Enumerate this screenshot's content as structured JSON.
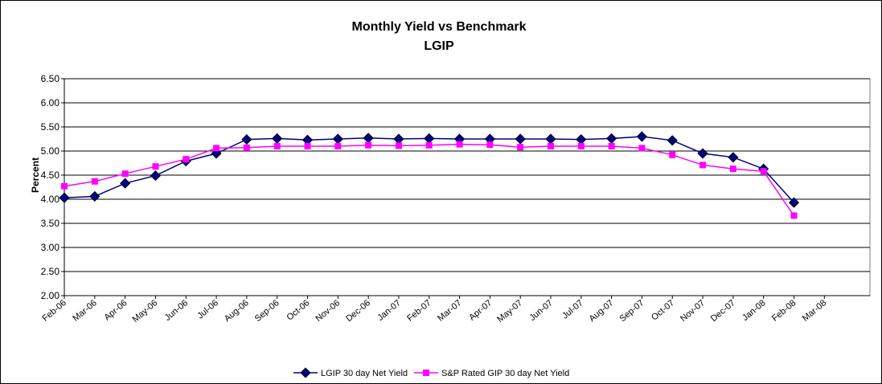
{
  "chart_data": {
    "type": "line",
    "title": "Monthly Yield vs Benchmark",
    "subtitle": "LGIP",
    "y_label": "Percent",
    "categories": [
      "Feb-06",
      "Mar-06",
      "Apr-06",
      "May-06",
      "Jun-06",
      "Jul-06",
      "Aug-06",
      "Sep-06",
      "Oct-06",
      "Nov-06",
      "Dec-06",
      "Jan-07",
      "Feb-07",
      "Mar-07",
      "Apr-07",
      "May-07",
      "Jun-07",
      "Jul-07",
      "Aug-07",
      "Sep-07",
      "Oct-07",
      "Nov-07",
      "Dec-07",
      "Jan-08",
      "Feb-08",
      "Mar-08"
    ],
    "series": [
      {
        "name": "LGIP 30 day Net Yield",
        "color": "#000080",
        "marker": "diamond",
        "values": [
          4.03,
          4.06,
          4.33,
          4.49,
          4.79,
          4.95,
          5.24,
          5.26,
          5.23,
          5.25,
          5.27,
          5.25,
          5.26,
          5.25,
          5.25,
          5.25,
          5.25,
          5.24,
          5.26,
          5.3,
          5.22,
          4.95,
          4.87,
          4.63,
          3.93,
          null
        ]
      },
      {
        "name": "S&P Rated GIP 30 day Net Yield",
        "color": "#ff00ff",
        "marker": "square",
        "values": [
          4.27,
          4.37,
          4.53,
          4.68,
          4.83,
          5.06,
          5.07,
          5.1,
          5.1,
          5.1,
          5.12,
          5.11,
          5.12,
          5.14,
          5.13,
          5.08,
          5.1,
          5.1,
          5.1,
          5.06,
          4.92,
          4.71,
          4.63,
          4.58,
          3.66,
          null
        ]
      }
    ],
    "ylim": [
      2,
      6.5
    ],
    "yticks": [
      {
        "value": 2,
        "label": "2.00"
      },
      {
        "value": 2.5,
        "label": "2.50"
      },
      {
        "value": 3,
        "label": "3.00"
      },
      {
        "value": 3.5,
        "label": "3.50"
      },
      {
        "value": 4,
        "label": "4.00"
      },
      {
        "value": 4.5,
        "label": "4.50"
      },
      {
        "value": 5,
        "label": "5.00"
      },
      {
        "value": 5.5,
        "label": "5.50"
      },
      {
        "value": 6,
        "label": "6.00"
      },
      {
        "value": 6.5,
        "label": "6.50"
      }
    ],
    "grid": true,
    "legend": "bottom"
  }
}
